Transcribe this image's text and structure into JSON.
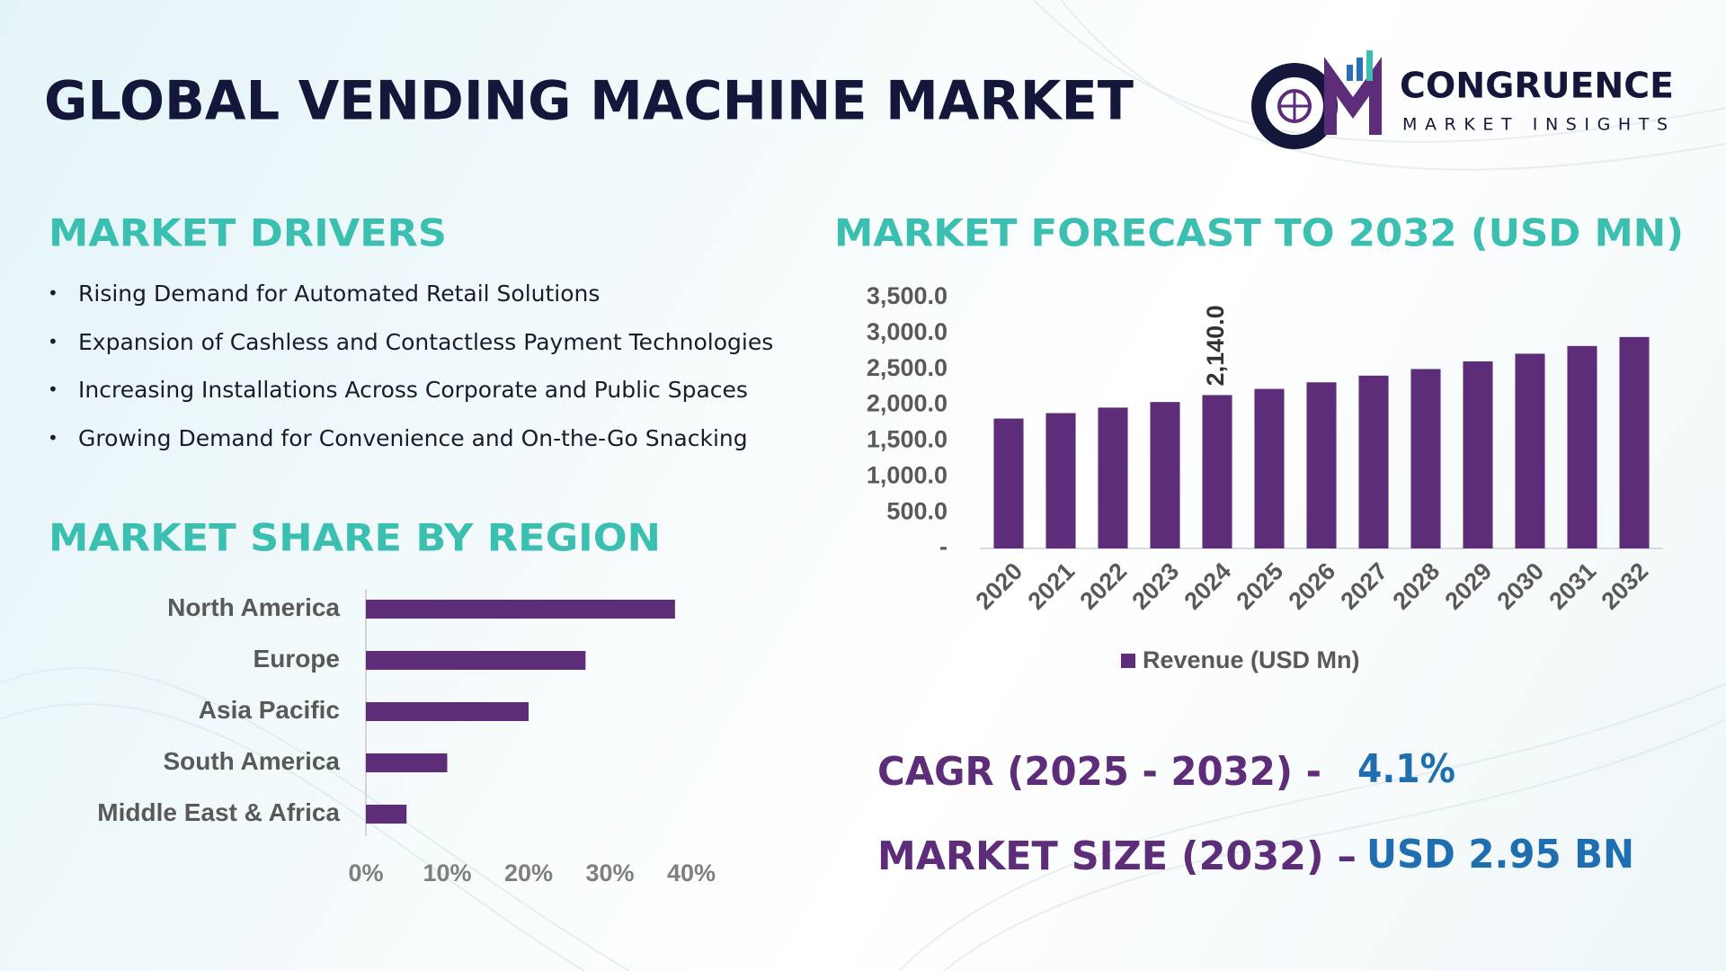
{
  "header": {
    "title": "GLOBAL VENDING MACHINE MARKET"
  },
  "logo": {
    "name": "CONGRUENCE",
    "tagline": "MARKET INSIGHTS"
  },
  "drivers": {
    "title": "MARKET DRIVERS",
    "items": [
      "Rising Demand for Automated Retail Solutions",
      "Expansion of Cashless and Contactless Payment Technologies",
      "Increasing Installations Across Corporate and Public Spaces",
      "Growing Demand for Convenience and On-the-Go Snacking"
    ]
  },
  "chart_data": [
    {
      "type": "bar",
      "title": "MARKET FORECAST TO 2032 (USD MN)",
      "categories": [
        "2020",
        "2021",
        "2022",
        "2023",
        "2024",
        "2025",
        "2026",
        "2027",
        "2028",
        "2029",
        "2030",
        "2031",
        "2032"
      ],
      "series": [
        {
          "name": "Revenue (USD Mn)",
          "color": "#5e2d79",
          "values": [
            1812,
            1888,
            1965,
            2043,
            2140,
            2226,
            2318,
            2411,
            2503,
            2610,
            2717,
            2825,
            2950
          ],
          "value_labels": [
            null,
            null,
            null,
            null,
            "2,140.0",
            null,
            null,
            null,
            null,
            null,
            null,
            null,
            null
          ]
        }
      ],
      "ylim": [
        0,
        3500
      ],
      "yticks": [
        {
          "value": 0,
          "label": "-"
        },
        {
          "value": 500,
          "label": "500.0"
        },
        {
          "value": 1000,
          "label": "1,000.0"
        },
        {
          "value": 1500,
          "label": "1,500.0"
        },
        {
          "value": 2000,
          "label": "2,000.0"
        },
        {
          "value": 2500,
          "label": "2,500.0"
        },
        {
          "value": 3000,
          "label": "3,000.0"
        },
        {
          "value": 3500,
          "label": "3,500.0"
        }
      ],
      "grid": false,
      "legend": "bottom"
    },
    {
      "type": "barh",
      "title": "MARKET SHARE BY REGION",
      "categories": [
        "North America",
        "Europe",
        "Asia Pacific",
        "South America",
        "Middle East & Africa"
      ],
      "values": [
        38,
        27,
        20,
        10,
        5
      ],
      "color": "#5e2d79",
      "xlim": [
        0,
        40
      ],
      "xticks": [
        {
          "value": 0,
          "label": "0%"
        },
        {
          "value": 10,
          "label": "10%"
        },
        {
          "value": 20,
          "label": "20%"
        },
        {
          "value": 30,
          "label": "30%"
        },
        {
          "value": 40,
          "label": "40%"
        }
      ],
      "grid": false
    }
  ],
  "highlights": {
    "cagr_label": "CAGR (2025 - 2032) -",
    "cagr_value": "4.1%",
    "size_label": "MARKET SIZE (2032) –",
    "size_value": "USD 2.95 BN"
  }
}
